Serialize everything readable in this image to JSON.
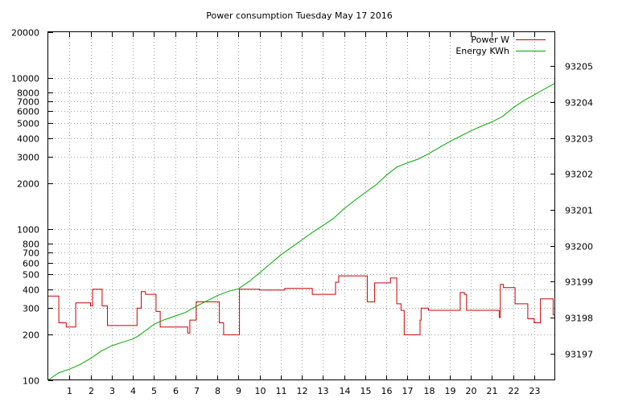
{
  "chart_data": {
    "type": "line",
    "title": "Power consumption Tuesday May 17 2016",
    "grid": true,
    "legend_position": "top-right",
    "x_axis": {
      "range": [
        0,
        24
      ],
      "ticks": [
        1,
        2,
        3,
        4,
        5,
        6,
        7,
        8,
        9,
        10,
        11,
        12,
        13,
        14,
        15,
        16,
        17,
        18,
        19,
        20,
        21,
        22,
        23
      ],
      "tick_labels": [
        "1",
        "2",
        "3",
        "4",
        "5",
        "6",
        "7",
        "8",
        "9",
        "10",
        "11",
        "12",
        "13",
        "14",
        "15",
        "16",
        "17",
        "18",
        "19",
        "20",
        "21",
        "22",
        "23"
      ]
    },
    "y_axis_left": {
      "scale": "log",
      "range": [
        100,
        20000
      ],
      "ticks": [
        100,
        200,
        300,
        400,
        500,
        600,
        700,
        800,
        1000,
        2000,
        3000,
        4000,
        5000,
        6000,
        7000,
        8000,
        10000,
        20000
      ],
      "tick_labels": [
        "100",
        "200",
        "300",
        "400",
        "500",
        "600",
        "700",
        "800",
        "1000",
        "2000",
        "3000",
        "4000",
        "5000",
        "6000",
        "7000",
        "8000",
        "10000",
        "20000"
      ]
    },
    "y_axis_right": {
      "scale": "linear",
      "range": [
        93196.25,
        93205.95
      ],
      "ticks": [
        93197,
        93198,
        93199,
        93200,
        93201,
        93202,
        93203,
        93204,
        93205
      ],
      "tick_labels": [
        "93197",
        "93198",
        "93199",
        "93200",
        "93201",
        "93202",
        "93203",
        "93204",
        "93205"
      ]
    },
    "series": [
      {
        "name": "Power W",
        "axis": "left",
        "color": "#cc0000",
        "step": true,
        "points": [
          [
            0,
            360
          ],
          [
            0.5,
            240
          ],
          [
            0.85,
            225
          ],
          [
            1.3,
            325
          ],
          [
            2.0,
            310
          ],
          [
            2.1,
            400
          ],
          [
            2.55,
            310
          ],
          [
            2.8,
            230
          ],
          [
            4.2,
            300
          ],
          [
            4.4,
            385
          ],
          [
            4.6,
            370
          ],
          [
            5.1,
            285
          ],
          [
            5.3,
            225
          ],
          [
            6.6,
            205
          ],
          [
            6.7,
            250
          ],
          [
            7.0,
            330
          ],
          [
            8.1,
            240
          ],
          [
            8.3,
            200
          ],
          [
            9.05,
            400
          ],
          [
            10.0,
            395
          ],
          [
            11.2,
            405
          ],
          [
            12.5,
            370
          ],
          [
            13.6,
            445
          ],
          [
            13.75,
            490
          ],
          [
            15.1,
            330
          ],
          [
            15.45,
            440
          ],
          [
            16.2,
            475
          ],
          [
            16.5,
            320
          ],
          [
            16.7,
            290
          ],
          [
            16.85,
            200
          ],
          [
            17.6,
            250
          ],
          [
            17.65,
            300
          ],
          [
            18.0,
            290
          ],
          [
            19.5,
            380
          ],
          [
            19.7,
            370
          ],
          [
            19.8,
            290
          ],
          [
            21.35,
            260
          ],
          [
            21.4,
            430
          ],
          [
            21.55,
            410
          ],
          [
            22.1,
            320
          ],
          [
            22.7,
            255
          ],
          [
            23.0,
            240
          ],
          [
            23.3,
            345
          ],
          [
            23.9,
            270
          ],
          [
            24.0,
            270
          ]
        ]
      },
      {
        "name": "Energy KWh",
        "axis": "right",
        "color": "#00aa00",
        "step": false,
        "points": [
          [
            0,
            93196.26
          ],
          [
            0.5,
            93196.46
          ],
          [
            1.0,
            93196.56
          ],
          [
            1.5,
            93196.69
          ],
          [
            2.0,
            93196.86
          ],
          [
            2.5,
            93197.06
          ],
          [
            3.0,
            93197.21
          ],
          [
            3.5,
            93197.31
          ],
          [
            4.0,
            93197.4
          ],
          [
            4.3,
            93197.5
          ],
          [
            5.0,
            93197.81
          ],
          [
            5.5,
            93197.94
          ],
          [
            6.0,
            93198.04
          ],
          [
            6.5,
            93198.14
          ],
          [
            7.0,
            93198.31
          ],
          [
            7.5,
            93198.46
          ],
          [
            8.0,
            93198.61
          ],
          [
            8.5,
            93198.72
          ],
          [
            9.0,
            93198.8
          ],
          [
            9.5,
            93199.0
          ],
          [
            10.0,
            93199.24
          ],
          [
            10.5,
            93199.49
          ],
          [
            11.0,
            93199.74
          ],
          [
            11.5,
            93199.95
          ],
          [
            12.0,
            93200.16
          ],
          [
            12.5,
            93200.37
          ],
          [
            13.0,
            93200.56
          ],
          [
            13.5,
            93200.76
          ],
          [
            14.0,
            93201.03
          ],
          [
            14.5,
            93201.26
          ],
          [
            15.0,
            93201.48
          ],
          [
            15.5,
            93201.69
          ],
          [
            16.0,
            93201.96
          ],
          [
            16.5,
            93202.19
          ],
          [
            17.0,
            93202.31
          ],
          [
            17.5,
            93202.41
          ],
          [
            18.0,
            93202.56
          ],
          [
            18.5,
            93202.73
          ],
          [
            19.0,
            93202.9
          ],
          [
            19.5,
            93203.05
          ],
          [
            20.0,
            93203.2
          ],
          [
            20.5,
            93203.33
          ],
          [
            21.0,
            93203.45
          ],
          [
            21.5,
            93203.6
          ],
          [
            22.0,
            93203.84
          ],
          [
            22.5,
            93204.04
          ],
          [
            23.0,
            93204.2
          ],
          [
            23.5,
            93204.37
          ],
          [
            24.0,
            93204.53
          ]
        ]
      }
    ]
  }
}
